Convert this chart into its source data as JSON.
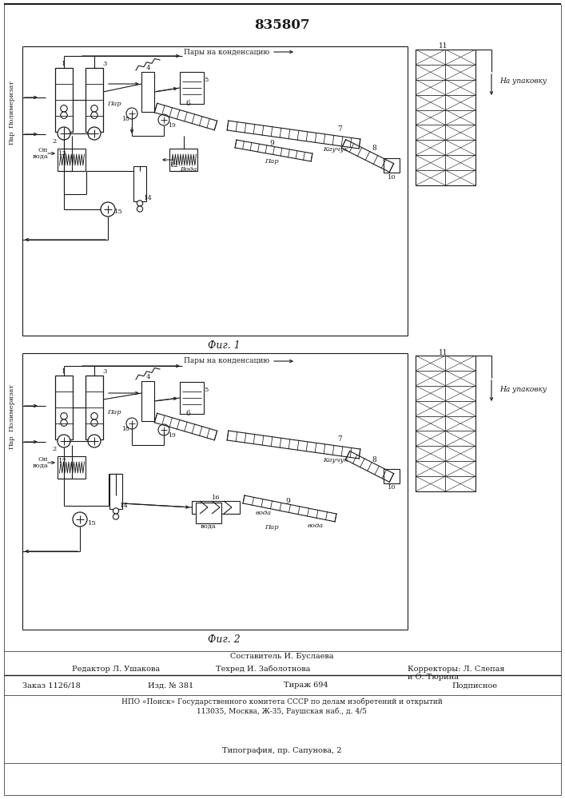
{
  "patent_number": "835807",
  "fig1_label": "Фиг. 1",
  "fig2_label": "Фиг. 2",
  "footer_composer": "Составитель И. Буслаева",
  "footer_editor": "Редактор Л. Ушакова",
  "footer_techred": "Техред И. Заболотнова",
  "footer_correctors": "Корректоры: Л. Слепая",
  "footer_correctors2": "и О. Тюрина",
  "footer_order": "Заказ 1126/18",
  "footer_issue": "Изд. № 381",
  "footer_print": "Тираж 694",
  "footer_type": "Подписное",
  "footer_npo": "НПО «Поиск» Государственного комитета СССР по делам изобретений и открытий",
  "footer_addr": "113035, Москва, Ж-35, Раушская наб., д. 4/5",
  "footer_print2": "Типография, пр. Сапунова, 2",
  "bg_color": "#ffffff",
  "lc": "#1a1a1a",
  "tc": "#1a1a1a"
}
